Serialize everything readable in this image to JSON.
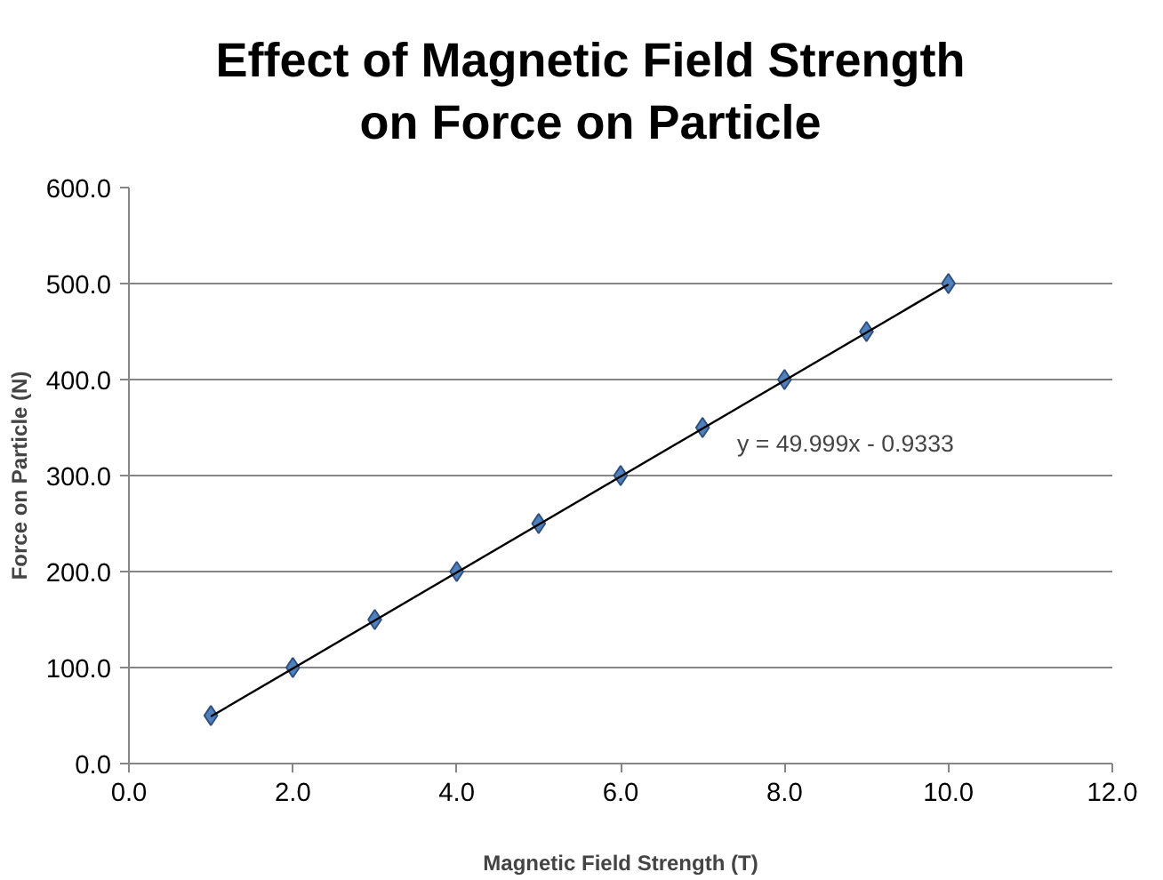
{
  "chart_data": {
    "type": "scatter",
    "title": "Effect of Magnetic Field Strength on Force on Particle",
    "xlabel": "Magnetic Field Strength (T)",
    "ylabel": "Force on Particle (N)",
    "series": [
      {
        "marker": "diamond",
        "color": "#4f81bd",
        "x": [
          1,
          2,
          3,
          4,
          5,
          6,
          7,
          8,
          9,
          10
        ],
        "values": [
          50,
          100,
          150,
          200,
          250,
          300,
          350,
          400,
          450,
          500
        ]
      },
      {
        "type": "line",
        "color": "#000000",
        "x": [
          1,
          10
        ],
        "values": [
          49,
          499
        ]
      }
    ],
    "annotations": [
      "y = 49.999x - 0.9333"
    ],
    "xlim": [
      0,
      12
    ],
    "xticks": [
      {
        "value": 0,
        "label": "0.0"
      },
      {
        "value": 2,
        "label": "2.0"
      },
      {
        "value": 4,
        "label": "4.0"
      },
      {
        "value": 6,
        "label": "6.0"
      },
      {
        "value": 8,
        "label": "8.0"
      },
      {
        "value": 10,
        "label": "10.0"
      },
      {
        "value": 12,
        "label": "12.0"
      }
    ],
    "ylim": [
      0,
      600
    ],
    "yticks": [
      {
        "value": 0,
        "label": "0.0"
      },
      {
        "value": 100,
        "label": "100.0"
      },
      {
        "value": 200,
        "label": "200.0"
      },
      {
        "value": 300,
        "label": "300.0"
      },
      {
        "value": 400,
        "label": "400.0"
      },
      {
        "value": 500,
        "label": "500.0"
      },
      {
        "value": 600,
        "label": "600.0"
      }
    ],
    "grid": "y"
  }
}
